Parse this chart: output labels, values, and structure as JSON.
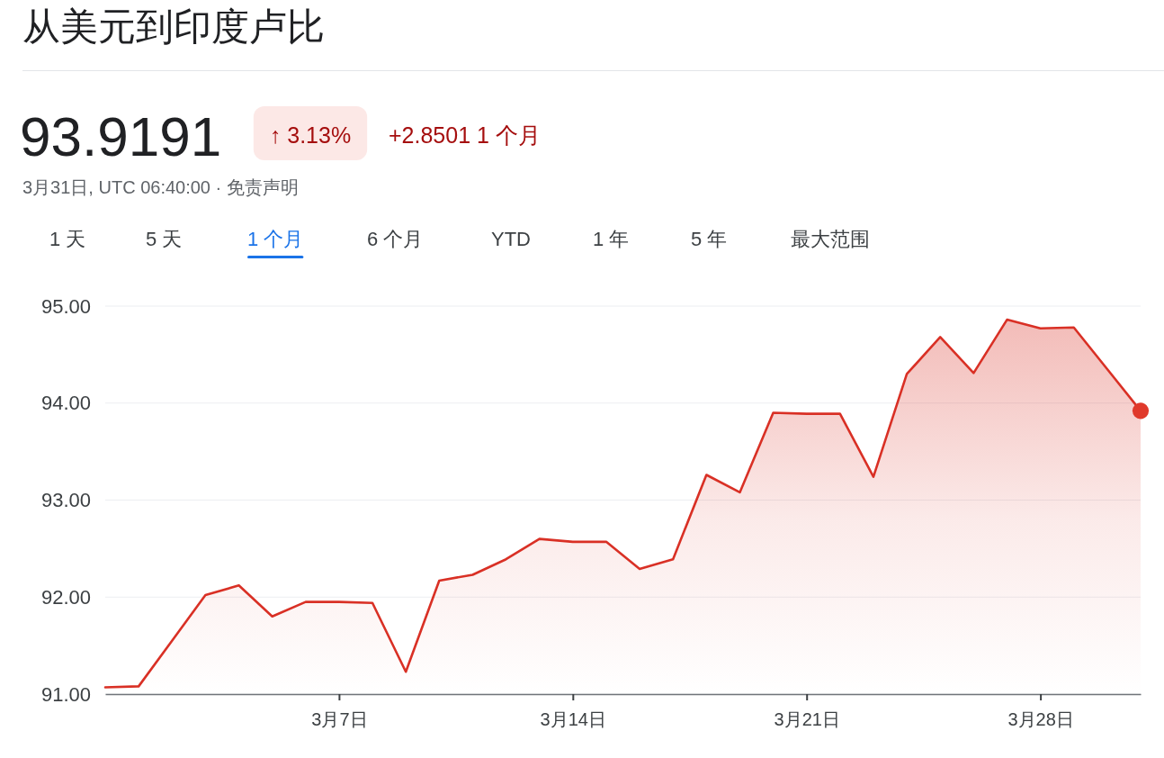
{
  "chart_data": {
    "type": "area",
    "title": "从美元到印度卢比",
    "annotations": [
      "93.9191",
      "↑ 3.13%",
      "+2.8501 1 个月",
      "3月31日, UTC 06:40:00 · 免责声明",
      "1 天",
      "5 天",
      "1 个月",
      "6 个月",
      "YTD",
      "1 年",
      "5 年",
      "最大范围"
    ],
    "x": [
      "--02-28",
      "--03-01",
      "--03-02",
      "--03-03",
      "--03-04",
      "--03-05",
      "--03-06",
      "--03-07",
      "--03-08",
      "--03-09",
      "--03-10",
      "--03-11",
      "--03-12",
      "--03-13",
      "--03-14",
      "--03-15",
      "--03-16",
      "--03-17",
      "--03-18",
      "--03-19",
      "--03-20",
      "--03-21",
      "--03-22",
      "--03-23",
      "--03-24",
      "--03-25",
      "--03-26",
      "--03-27",
      "--03-28",
      "--03-29",
      "--03-30",
      "--03-31"
    ],
    "xlim": [
      "--02-28",
      "--03-31"
    ],
    "xticks": [
      {
        "value": "--03-07",
        "label": "3月7日"
      },
      {
        "value": "--03-14",
        "label": "3月14日"
      },
      {
        "value": "--03-21",
        "label": "3月21日"
      },
      {
        "value": "--03-28",
        "label": "3月28日"
      }
    ],
    "ylim": [
      91,
      95
    ],
    "yticks": [
      {
        "value": 91,
        "label": "91.00"
      },
      {
        "value": 92,
        "label": "92.00"
      },
      {
        "value": 93,
        "label": "93.00"
      },
      {
        "value": 94,
        "label": "94.00"
      },
      {
        "value": 95,
        "label": "95.00"
      }
    ],
    "grid": "y",
    "series": [
      {
        "color": "#d93025",
        "values": [
          91.07,
          91.08,
          91.55,
          92.02,
          92.12,
          91.8,
          91.95,
          91.95,
          91.94,
          91.23,
          92.17,
          92.23,
          92.39,
          92.6,
          92.57,
          92.57,
          92.29,
          92.39,
          93.26,
          93.08,
          93.9,
          93.89,
          93.89,
          93.24,
          94.3,
          94.68,
          94.31,
          94.86,
          94.77,
          94.78,
          94.35,
          93.92
        ]
      },
      {
        "type": "scatter",
        "color": "#e0392b",
        "marker": "circle",
        "x": [
          "--03-31"
        ],
        "values": [
          93.92
        ]
      }
    ]
  }
}
